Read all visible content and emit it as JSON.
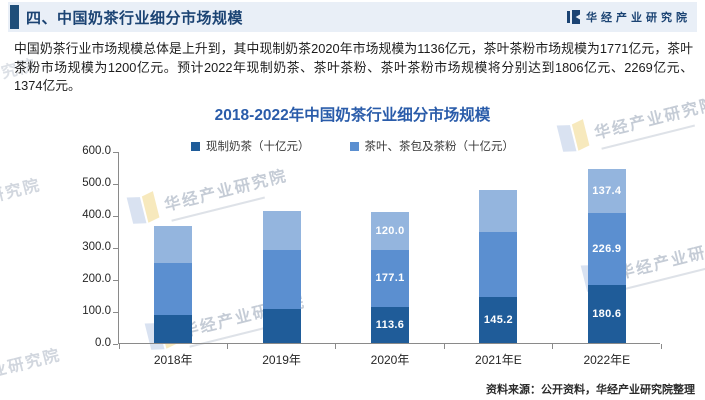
{
  "header": {
    "title": "四、中国奶茶行业细分市场规模",
    "brand": "华经产业研究院"
  },
  "intro": {
    "text": "中国奶茶行业市场规模总体是上升到，其中现制奶茶2020年市场规模为1136亿元，茶叶茶粉市场规模为1771亿元，茶叶茶粉市场规模为1200亿元。预计2022年现制奶茶、茶叶茶粉、茶叶茶粉市场规模将分别达到1806亿元、2269亿元、1374亿元。"
  },
  "chart_data": {
    "type": "bar",
    "stacked": true,
    "title": "2018-2022年中国奶茶行业细分市场规模",
    "categories": [
      "2018年",
      "2019年",
      "2020年",
      "2021年E",
      "2022年E"
    ],
    "series": [
      {
        "name": "现制奶茶（十亿元）",
        "color": "#1f5c99",
        "values": [
          86,
          106,
          113.6,
          145.2,
          180.6
        ],
        "labels": [
          null,
          null,
          "113.6",
          "145.2",
          "180.6"
        ]
      },
      {
        "name": "茶叶、茶包及茶粉（十亿元）",
        "color": "#5b8fd0",
        "values": [
          165,
          185,
          177.1,
          202,
          226.9
        ],
        "labels": [
          null,
          null,
          "177.1",
          null,
          "226.9"
        ]
      },
      {
        "name": "unlabeled (light blue)",
        "color": "#94b5de",
        "values": [
          115,
          123,
          120,
          131,
          137.4
        ],
        "labels": [
          null,
          null,
          "120.0",
          null,
          "137.4"
        ]
      }
    ],
    "legend_entries": [
      "现制奶茶（十亿元）",
      "茶叶、茶包及茶粉（十亿元）"
    ],
    "ylim": [
      0,
      600
    ],
    "yticks": [
      "600.0",
      "500.0",
      "400.0",
      "300.0",
      "200.0",
      "100.0",
      "0.0"
    ],
    "grid": false,
    "legend_position": "top"
  },
  "source": {
    "text": "资料来源：公开资料，华经产业研究院整理"
  },
  "watermark": {
    "text": "华经产业研究院"
  },
  "colors": {
    "band_bg": "#e9eff7",
    "accent_dark": "#1f4e79",
    "heading": "#1b4373",
    "chart_title": "#2a5caa",
    "series_dark": "#1f5c99",
    "series_mid": "#5b8fd0",
    "series_light": "#94b5de"
  }
}
